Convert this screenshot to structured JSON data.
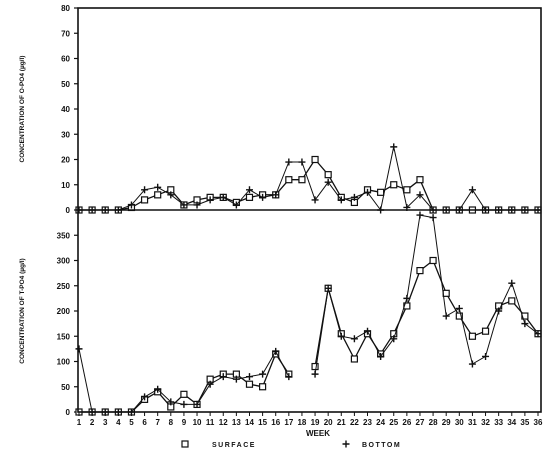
{
  "chart_data": [
    {
      "type": "line",
      "ylabel": "CONCENTRATION OF O-PO4 (µg/l)",
      "ylim": [
        0,
        80
      ],
      "yticks": [
        0,
        10,
        20,
        30,
        40,
        50,
        60,
        70,
        80
      ],
      "grid": false,
      "series": [
        {
          "name": "SURFACE",
          "x": [
            1,
            2,
            3,
            4,
            5,
            6,
            7,
            8,
            9,
            10,
            11,
            12,
            13,
            14,
            15,
            16,
            17,
            18,
            19,
            20,
            21,
            22,
            23,
            24,
            25,
            26,
            27,
            28,
            29,
            30,
            31,
            32,
            33,
            34,
            35,
            36
          ],
          "values": [
            0,
            0,
            0,
            0,
            1,
            4,
            6,
            8,
            2,
            4,
            5,
            5,
            3,
            5,
            6,
            6,
            12,
            12,
            20,
            14,
            5,
            3,
            8,
            7,
            10,
            8,
            12,
            0,
            0,
            0,
            0,
            0,
            0,
            0,
            0,
            0
          ]
        },
        {
          "name": "BOTTOM",
          "x": [
            1,
            2,
            3,
            4,
            5,
            6,
            7,
            8,
            9,
            10,
            11,
            12,
            13,
            14,
            15,
            16,
            17,
            18,
            19,
            20,
            21,
            22,
            23,
            24,
            25,
            26,
            27,
            28,
            29,
            30,
            31,
            32,
            33,
            34,
            35,
            36
          ],
          "values": [
            0,
            0,
            0,
            0,
            2,
            8,
            9,
            6,
            2,
            2,
            4,
            5,
            2,
            8,
            5,
            6,
            19,
            19,
            4,
            11,
            4,
            5,
            7,
            0,
            25,
            1,
            6,
            0,
            0,
            0,
            8,
            0,
            0,
            0,
            0,
            0
          ]
        }
      ]
    },
    {
      "type": "line",
      "xlabel": "WEEK",
      "ylabel": "CONCENTRATION OF T-PO4 (µg/l)",
      "ylim": [
        0,
        400
      ],
      "yticks": [
        0,
        50,
        100,
        150,
        200,
        250,
        300,
        350
      ],
      "xticks": [
        1,
        2,
        3,
        4,
        5,
        6,
        7,
        8,
        9,
        10,
        11,
        12,
        13,
        14,
        15,
        16,
        17,
        18,
        19,
        20,
        21,
        22,
        23,
        24,
        25,
        26,
        27,
        28,
        29,
        30,
        31,
        32,
        33,
        34,
        35,
        36
      ],
      "grid": false,
      "legend": "bottom",
      "series": [
        {
          "name": "SURFACE",
          "x": [
            1,
            2,
            3,
            4,
            5,
            6,
            7,
            8,
            9,
            10,
            11,
            12,
            13,
            14,
            15,
            16,
            17,
            19,
            20,
            21,
            22,
            23,
            24,
            25,
            26,
            27,
            28,
            29,
            30,
            31,
            32,
            33,
            34,
            35,
            36
          ],
          "values": [
            0,
            0,
            0,
            0,
            0,
            25,
            40,
            10,
            35,
            15,
            65,
            75,
            75,
            55,
            50,
            115,
            75,
            90,
            245,
            155,
            105,
            155,
            115,
            155,
            210,
            280,
            300,
            235,
            190,
            150,
            160,
            210,
            220,
            190,
            155
          ]
        },
        {
          "name": "BOTTOM",
          "x": [
            1,
            2,
            3,
            4,
            5,
            6,
            7,
            8,
            9,
            10,
            11,
            12,
            13,
            14,
            15,
            16,
            17,
            19,
            20,
            21,
            22,
            23,
            24,
            25,
            26,
            27,
            28,
            29,
            30,
            31,
            32,
            33,
            34,
            35,
            36
          ],
          "values": [
            125,
            0,
            0,
            0,
            0,
            30,
            45,
            20,
            15,
            15,
            55,
            70,
            65,
            70,
            75,
            120,
            70,
            75,
            245,
            150,
            145,
            160,
            110,
            145,
            225,
            390,
            385,
            190,
            205,
            95,
            110,
            200,
            255,
            175,
            155
          ]
        }
      ]
    }
  ]
}
